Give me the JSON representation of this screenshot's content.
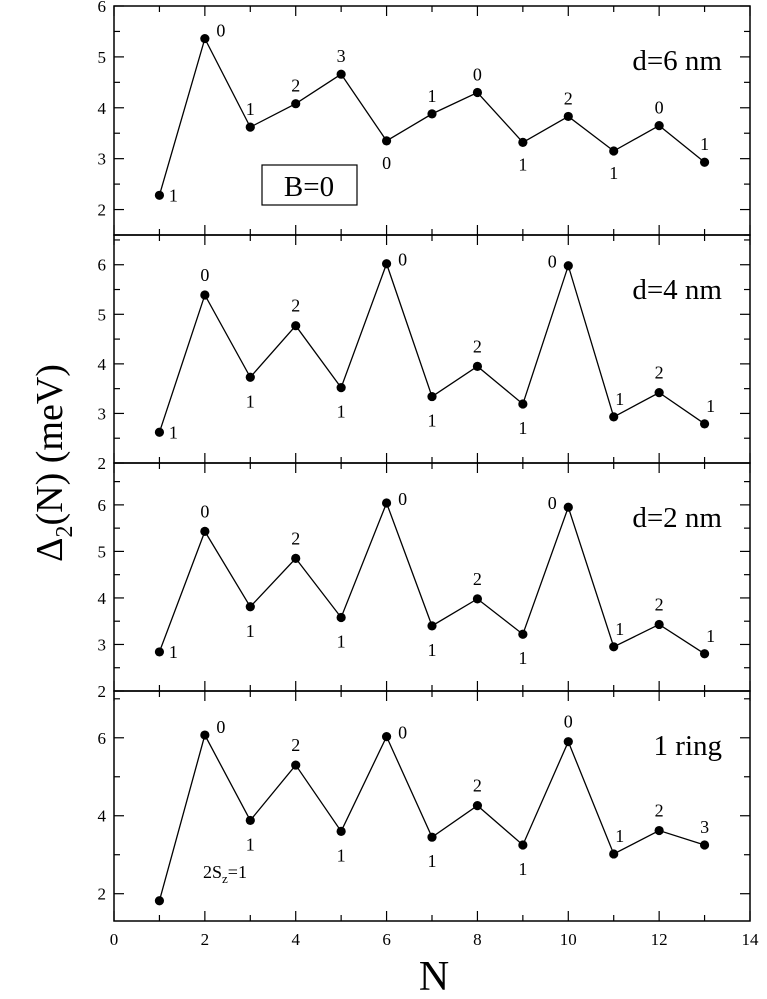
{
  "figure": {
    "x_axis_title": "N",
    "y_axis_title": "Δ2(N) (meV)",
    "y_axis_title_main": "Δ",
    "y_axis_title_sub": "2",
    "y_axis_title_rest": "(N) (meV)"
  },
  "chart_data": [
    {
      "type": "line",
      "label": "d=6 nm",
      "inset_box_label": "B=0",
      "xlim": [
        0,
        14
      ],
      "ylim": [
        1.5,
        6
      ],
      "yticks": [
        2,
        3,
        4,
        5,
        6
      ],
      "x": [
        1,
        2,
        3,
        4,
        5,
        6,
        7,
        8,
        9,
        10,
        11,
        12,
        13
      ],
      "y": [
        2.28,
        5.36,
        3.62,
        4.08,
        4.66,
        3.35,
        3.88,
        4.3,
        3.32,
        3.83,
        3.15,
        3.65,
        2.93
      ],
      "point_labels": [
        "1",
        "0",
        "1",
        "2",
        "3",
        "0",
        "1",
        "0",
        "1",
        "2",
        "1",
        "0",
        "1"
      ]
    },
    {
      "type": "line",
      "label": "d=4 nm",
      "xlim": [
        0,
        14
      ],
      "ylim": [
        2,
        6.6
      ],
      "yticks": [
        2,
        3,
        4,
        5,
        6
      ],
      "x": [
        1,
        2,
        3,
        4,
        5,
        6,
        7,
        8,
        9,
        10,
        11,
        12,
        13
      ],
      "y": [
        2.62,
        5.39,
        3.73,
        4.77,
        3.52,
        6.02,
        3.34,
        3.95,
        3.19,
        5.98,
        2.93,
        3.42,
        2.79
      ],
      "point_labels": [
        "1",
        "0",
        "1",
        "2",
        "1",
        "0",
        "1",
        "2",
        "1",
        "0",
        "1",
        "2",
        "1"
      ]
    },
    {
      "type": "line",
      "label": "d=2 nm",
      "xlim": [
        0,
        14
      ],
      "ylim": [
        2,
        6.9
      ],
      "yticks": [
        2,
        3,
        4,
        5,
        6
      ],
      "x": [
        1,
        2,
        3,
        4,
        5,
        6,
        7,
        8,
        9,
        10,
        11,
        12,
        13
      ],
      "y": [
        2.84,
        5.43,
        3.81,
        4.85,
        3.58,
        6.04,
        3.4,
        3.98,
        3.22,
        5.95,
        2.95,
        3.43,
        2.8
      ],
      "point_labels": [
        "1",
        "0",
        "1",
        "2",
        "1",
        "0",
        "1",
        "2",
        "1",
        "0",
        "1",
        "2",
        "1"
      ]
    },
    {
      "type": "line",
      "label": "1 ring",
      "annotation_main": "2S",
      "annotation_sub": "z",
      "annotation_rest": "=1",
      "xlim": [
        0,
        14
      ],
      "ylim": [
        1.3,
        7.2
      ],
      "yticks": [
        2,
        4,
        6
      ],
      "x": [
        1,
        2,
        3,
        4,
        5,
        6,
        7,
        8,
        9,
        10,
        11,
        12,
        13
      ],
      "y": [
        1.82,
        6.07,
        3.88,
        5.3,
        3.6,
        6.03,
        3.45,
        4.26,
        3.25,
        5.9,
        3.02,
        3.62,
        3.25
      ],
      "point_labels": [
        "",
        "0",
        "1",
        "2",
        "1",
        "0",
        "1",
        "2",
        "1",
        "0",
        "1",
        "2",
        "3"
      ],
      "xticks": [
        0,
        2,
        4,
        6,
        8,
        10,
        12,
        14
      ]
    }
  ]
}
